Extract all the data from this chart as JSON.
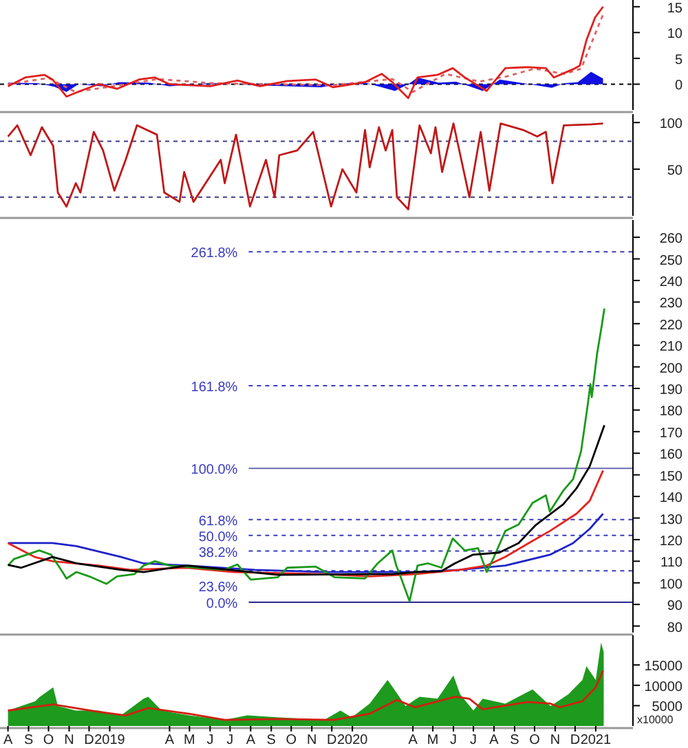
{
  "chart_data": [
    {
      "type": "line",
      "xlim": [
        "2018-07-20",
        "2021-02-26"
      ],
      "ylim": [
        -5,
        16.3
      ],
      "yticks": [
        0,
        5,
        10,
        15
      ],
      "tick_labels": "y",
      "grid": false,
      "ref_lines": [
        {
          "axis": "y",
          "value": 0,
          "color": "#000000",
          "line_style": "dashed"
        }
      ],
      "series": [
        {
          "type": "area",
          "color": "#1010e0",
          "x": [
            "2018-08-01",
            "2018-09-15",
            "2018-10-10",
            "2018-10-28",
            "2018-11-15",
            "2018-12-20",
            "2019-01-15",
            "2019-03-01",
            "2019-04-01",
            "2019-06-01",
            "2019-09-01",
            "2019-11-15",
            "2019-12-15",
            "2020-01-20",
            "2020-03-05",
            "2020-03-25",
            "2020-04-08",
            "2020-05-10",
            "2020-06-05",
            "2020-07-15",
            "2020-08-10",
            "2020-10-27",
            "2020-11-15",
            "2020-12-05",
            "2020-12-25",
            "2021-01-12"
          ],
          "values": [
            0.3,
            0.2,
            -0.5,
            -1.5,
            0,
            -0.4,
            0.4,
            0.3,
            -0.4,
            0.2,
            -0.3,
            -0.6,
            0.1,
            0.3,
            -1.3,
            0,
            1.3,
            0.3,
            0.5,
            -1.3,
            0.9,
            -0.7,
            0.2,
            0.4,
            2.4,
            1.1
          ]
        },
        {
          "color": "#e06060",
          "line_style": "dashed",
          "x": [
            "2018-08-01",
            "2018-10-01",
            "2018-11-10",
            "2019-01-01",
            "2019-03-15",
            "2019-06-01",
            "2019-12-01",
            "2020-03-01",
            "2020-04-01",
            "2020-05-20",
            "2020-07-10",
            "2020-08-20",
            "2020-10-01",
            "2020-11-15",
            "2020-12-10",
            "2021-01-12"
          ],
          "values": [
            0,
            1.2,
            -1.5,
            -0.5,
            1,
            0.2,
            -0.2,
            1,
            -1.5,
            2,
            0.5,
            1.5,
            3,
            2,
            3,
            13.5
          ]
        },
        {
          "color": "#e0201c",
          "x": [
            "2018-08-01",
            "2018-08-27",
            "2018-09-25",
            "2018-10-07",
            "2018-10-28",
            "2018-11-18",
            "2018-12-15",
            "2019-01-12",
            "2019-02-14",
            "2019-03-10",
            "2019-04-01",
            "2019-06-01",
            "2019-07-12",
            "2019-08-15",
            "2019-09-25",
            "2019-11-07",
            "2019-12-03",
            "2020-01-20",
            "2020-02-14",
            "2020-03-01",
            "2020-03-25",
            "2020-04-08",
            "2020-05-08",
            "2020-05-31",
            "2020-06-18",
            "2020-07-21",
            "2020-08-18",
            "2020-09-20",
            "2020-10-18",
            "2020-10-30",
            "2020-11-28",
            "2020-12-08",
            "2020-12-18",
            "2020-12-31",
            "2021-01-12"
          ],
          "values": [
            -0.4,
            1.3,
            1.8,
            0.9,
            -2.4,
            -1.3,
            0,
            -0.9,
            0.9,
            1.3,
            0,
            -0.4,
            0.7,
            -0.4,
            0.6,
            0.9,
            -0.6,
            0.4,
            2,
            0.4,
            -2.7,
            1.3,
            1.8,
            3.1,
            1.3,
            -1.3,
            3.1,
            3.3,
            3.1,
            1.3,
            2.9,
            3.6,
            8.5,
            12.9,
            15
          ]
        }
      ]
    },
    {
      "type": "line",
      "xlim": [
        "2018-07-20",
        "2021-02-26"
      ],
      "ylim": [
        0,
        109
      ],
      "yticks": [
        50,
        100
      ],
      "tick_labels": "y",
      "grid": false,
      "ref_lines": [
        {
          "axis": "y",
          "value": 80,
          "color": "#3a3a90",
          "line_style": "dashed"
        },
        {
          "axis": "y",
          "value": 20,
          "color": "#3a3a90",
          "line_style": "dashed"
        }
      ],
      "series": [
        {
          "color": "#c01818",
          "x": [
            "2018-08-01",
            "2018-08-15",
            "2018-09-04",
            "2018-09-21",
            "2018-10-08",
            "2018-10-15",
            "2018-10-28",
            "2018-11-11",
            "2018-11-18",
            "2018-12-08",
            "2018-12-22",
            "2019-01-08",
            "2019-01-25",
            "2019-02-11",
            "2019-03-13",
            "2019-03-24",
            "2019-04-16",
            "2019-04-23",
            "2019-05-07",
            "2019-06-17",
            "2019-06-23",
            "2019-07-10",
            "2019-07-31",
            "2019-08-24",
            "2019-09-06",
            "2019-09-13",
            "2019-10-10",
            "2019-11-03",
            "2019-11-30",
            "2019-12-17",
            "2020-01-07",
            "2020-01-20",
            "2020-01-27",
            "2020-02-10",
            "2020-02-20",
            "2020-03-01",
            "2020-03-08",
            "2020-03-25",
            "2020-04-11",
            "2020-04-28",
            "2020-05-05",
            "2020-05-15",
            "2020-06-01",
            "2020-06-25",
            "2020-07-12",
            "2020-07-25",
            "2020-08-11",
            "2020-09-14",
            "2020-10-05",
            "2020-10-18",
            "2020-10-28",
            "2020-11-14",
            "2020-12-25",
            "2021-01-12"
          ],
          "values": [
            85,
            97,
            65,
            95,
            75,
            25,
            10,
            35,
            25,
            90,
            70,
            27,
            60,
            97,
            87,
            25,
            15,
            47,
            15,
            60,
            35,
            87,
            10,
            60,
            20,
            65,
            70,
            90,
            10,
            50,
            25,
            92,
            52,
            95,
            70,
            92,
            20,
            7,
            97,
            67,
            95,
            47,
            99,
            20,
            90,
            27,
            99,
            92,
            85,
            90,
            35,
            97,
            98,
            99
          ]
        }
      ]
    },
    {
      "type": "line",
      "xlim": [
        "2018-07-20",
        "2021-02-26"
      ],
      "ylim": [
        77,
        268
      ],
      "yticks": [
        80,
        90,
        100,
        110,
        120,
        130,
        140,
        150,
        160,
        170,
        180,
        190,
        200,
        210,
        220,
        230,
        240,
        250,
        260
      ],
      "tick_labels": "y",
      "grid": false,
      "ref_lines": [
        {
          "axis": "y",
          "value": 253.3,
          "color": "#3a3ac0",
          "line_style": "dashed"
        },
        {
          "axis": "y",
          "value": 191.3,
          "color": "#3a3ac0",
          "line_style": "dashed"
        },
        {
          "axis": "y",
          "value": 153,
          "color": "#6a6ab0",
          "line_style": "solid"
        },
        {
          "axis": "y",
          "value": 129.3,
          "color": "#3a3ac0",
          "line_style": "dashed"
        },
        {
          "axis": "y",
          "value": 122,
          "color": "#3a3ac0",
          "line_style": "dashed"
        },
        {
          "axis": "y",
          "value": 114.7,
          "color": "#3a3ac0",
          "line_style": "dashed"
        },
        {
          "axis": "y",
          "value": 105.6,
          "color": "#3a3ac0",
          "line_style": "dashed"
        },
        {
          "axis": "y",
          "value": 91,
          "color": "#2a2a90",
          "line_style": "solid"
        }
      ],
      "annotations": [
        {
          "text": "261.8%",
          "x": "2019-07-29",
          "y": 253.3
        },
        {
          "text": "161.8%",
          "x": "2019-07-29",
          "y": 191.3
        },
        {
          "text": "100.0%",
          "x": "2019-07-29",
          "y": 153
        },
        {
          "text": "61.8%",
          "x": "2019-07-29",
          "y": 129.3
        },
        {
          "text": "50.0%",
          "x": "2019-07-29",
          "y": 122
        },
        {
          "text": "38.2%",
          "x": "2019-07-29",
          "y": 114.7
        },
        {
          "text": "23.6%",
          "x": "2019-07-29",
          "y": 105.6
        },
        {
          "text": "0.0%",
          "x": "2019-07-29",
          "y": 91
        }
      ],
      "series": [
        {
          "color": "#1f23c8",
          "x": [
            "2018-08-01",
            "2018-10-07",
            "2018-11-12",
            "2019-01-18",
            "2019-02-21",
            "2019-04-27",
            "2019-08-07",
            "2019-11-20",
            "2020-04-05",
            "2020-06-10",
            "2020-08-18",
            "2020-10-24",
            "2020-11-28",
            "2020-12-23",
            "2021-01-12"
          ],
          "values": [
            118.4,
            118.4,
            117,
            112,
            109,
            108,
            106,
            105,
            105,
            106,
            108,
            113,
            118.4,
            125,
            132
          ]
        },
        {
          "color": "#e8231e",
          "x": [
            "2018-08-01",
            "2018-09-10",
            "2018-10-07",
            "2018-12-15",
            "2019-02-01",
            "2019-04-27",
            "2019-07-06",
            "2019-11-20",
            "2020-01-27",
            "2020-04-05",
            "2020-06-10",
            "2020-07-21",
            "2020-08-18",
            "2020-09-20",
            "2020-10-24",
            "2020-12-03",
            "2020-12-23",
            "2021-01-12"
          ],
          "values": [
            118.4,
            112,
            110,
            108,
            106,
            107,
            105,
            104,
            103,
            104,
            106,
            108,
            112,
            118,
            124,
            132,
            138,
            152
          ]
        },
        {
          "color": "#1a9a1a",
          "x": [
            "2018-08-01",
            "2018-08-10",
            "2018-09-17",
            "2018-10-05",
            "2018-10-22",
            "2018-10-28",
            "2018-11-12",
            "2018-12-01",
            "2018-12-27",
            "2019-01-12",
            "2019-02-07",
            "2019-02-21",
            "2019-03-10",
            "2019-04-01",
            "2019-05-12",
            "2019-06-22",
            "2019-07-12",
            "2019-08-01",
            "2019-09-11",
            "2019-09-25",
            "2019-11-07",
            "2019-12-05",
            "2020-01-20",
            "2020-02-08",
            "2020-03-01",
            "2020-03-07",
            "2020-03-15",
            "2020-03-27",
            "2020-04-08",
            "2020-04-24",
            "2020-05-14",
            "2020-05-31",
            "2020-06-18",
            "2020-07-08",
            "2020-07-21",
            "2020-08-01",
            "2020-08-18",
            "2020-09-07",
            "2020-09-28",
            "2020-10-18",
            "2020-10-24",
            "2020-11-13",
            "2020-11-28",
            "2020-12-10",
            "2020-12-20",
            "2020-12-24",
            "2020-12-26",
            "2021-01-03",
            "2021-01-10",
            "2021-01-14"
          ],
          "values": [
            108,
            111,
            115,
            113,
            105,
            102,
            105,
            103,
            99.5,
            103,
            104,
            108,
            110,
            108,
            107,
            106,
            108.5,
            101.5,
            102.6,
            107,
            107.5,
            102.6,
            102,
            109,
            115,
            108,
            101.6,
            91.5,
            108,
            109,
            107,
            120.5,
            115,
            116,
            105,
            112,
            124,
            127,
            137,
            140.5,
            133,
            142.6,
            148,
            161,
            182.5,
            192,
            186,
            206,
            219,
            227
          ]
        },
        {
          "color": "#000000",
          "x": [
            "2018-08-01",
            "2018-08-21",
            "2018-10-07",
            "2018-11-12",
            "2019-01-18",
            "2019-02-21",
            "2019-04-27",
            "2019-09-11",
            "2020-01-27",
            "2020-03-01",
            "2020-04-05",
            "2020-05-14",
            "2020-06-03",
            "2020-06-30",
            "2020-08-09",
            "2020-09-07",
            "2020-10-03",
            "2020-11-13",
            "2020-12-03",
            "2020-12-23",
            "2021-01-14"
          ],
          "values": [
            108.3,
            107,
            112,
            109,
            106,
            105,
            108,
            103.7,
            104,
            104,
            105,
            105.4,
            109,
            113,
            114,
            118.4,
            126.8,
            136.3,
            143.7,
            154,
            173
          ]
        }
      ]
    },
    {
      "type": "area",
      "xlim": [
        "2018-07-20",
        "2021-02-26"
      ],
      "ylim": [
        0,
        22300
      ],
      "yticks": [
        5000,
        10000,
        15000
      ],
      "grid": false,
      "xticks": [
        {
          "value": "2018-08-01",
          "label": "A"
        },
        {
          "value": "2018-09-01",
          "label": "S"
        },
        {
          "value": "2018-10-01",
          "label": "O"
        },
        {
          "value": "2018-11-01",
          "label": "N"
        },
        {
          "value": "2018-12-01",
          "label": "D"
        },
        {
          "value": "2019-01-01",
          "label": "2019"
        },
        {
          "value": "2019-04-01",
          "label": "A"
        },
        {
          "value": "2019-05-01",
          "label": "M"
        },
        {
          "value": "2019-06-01",
          "label": "J"
        },
        {
          "value": "2019-07-01",
          "label": "J"
        },
        {
          "value": "2019-08-01",
          "label": "A"
        },
        {
          "value": "2019-09-01",
          "label": "S"
        },
        {
          "value": "2019-10-01",
          "label": "O"
        },
        {
          "value": "2019-11-01",
          "label": "N"
        },
        {
          "value": "2019-12-01",
          "label": "D"
        },
        {
          "value": "2020-01-01",
          "label": "2020"
        },
        {
          "value": "2020-04-01",
          "label": "A"
        },
        {
          "value": "2020-05-01",
          "label": "M"
        },
        {
          "value": "2020-06-01",
          "label": "J"
        },
        {
          "value": "2020-07-01",
          "label": "J"
        },
        {
          "value": "2020-08-01",
          "label": "A"
        },
        {
          "value": "2020-09-01",
          "label": "S"
        },
        {
          "value": "2020-10-01",
          "label": "O"
        },
        {
          "value": "2020-11-01",
          "label": "N"
        },
        {
          "value": "2020-12-01",
          "label": "D"
        },
        {
          "value": "2021-01-01",
          "label": "2021"
        }
      ],
      "annotations": [
        "x10000"
      ],
      "series": [
        {
          "color": "#1e9a1e",
          "x": [
            "2018-08-01",
            "2018-09-11",
            "2018-09-18",
            "2018-10-08",
            "2018-10-15",
            "2018-11-11",
            "2018-12-15",
            "2019-01-18",
            "2019-02-21",
            "2019-02-28",
            "2019-03-20",
            "2019-04-30",
            "2019-06-23",
            "2019-07-27",
            "2019-09-13",
            "2019-11-20",
            "2019-12-14",
            "2019-12-31",
            "2020-01-27",
            "2020-02-23",
            "2020-03-04",
            "2020-03-21",
            "2020-04-11",
            "2020-05-08",
            "2020-06-01",
            "2020-06-11",
            "2020-07-01",
            "2020-07-15",
            "2020-08-18",
            "2020-09-28",
            "2020-10-25",
            "2020-11-21",
            "2020-12-12",
            "2020-12-18",
            "2021-01-01",
            "2021-01-09",
            "2021-01-13"
          ],
          "values": [
            3800,
            6100,
            7200,
            9500,
            4900,
            3800,
            3800,
            2600,
            6700,
            7200,
            3800,
            2600,
            1500,
            2600,
            2100,
            1500,
            3800,
            2100,
            5500,
            11300,
            9000,
            4900,
            7200,
            6700,
            12400,
            7800,
            3800,
            6700,
            5500,
            9000,
            4900,
            7800,
            11300,
            14700,
            11300,
            20500,
            18200
          ]
        },
        {
          "type": "line",
          "color": "#d02010",
          "x": [
            "2018-08-01",
            "2018-10-08",
            "2018-12-15",
            "2019-01-25",
            "2019-02-28",
            "2019-04-30",
            "2019-06-23",
            "2019-09-13",
            "2019-12-04",
            "2020-01-27",
            "2020-03-08",
            "2020-04-04",
            "2020-06-04",
            "2020-06-25",
            "2020-07-15",
            "2020-09-21",
            "2020-10-25",
            "2020-11-08",
            "2020-12-12",
            "2021-01-01",
            "2021-01-12"
          ],
          "values": [
            3800,
            5300,
            3500,
            2600,
            4400,
            3000,
            1500,
            1700,
            1500,
            3000,
            6400,
            4600,
            7200,
            6700,
            4100,
            5900,
            5500,
            4600,
            6100,
            9500,
            13600
          ]
        }
      ]
    }
  ]
}
